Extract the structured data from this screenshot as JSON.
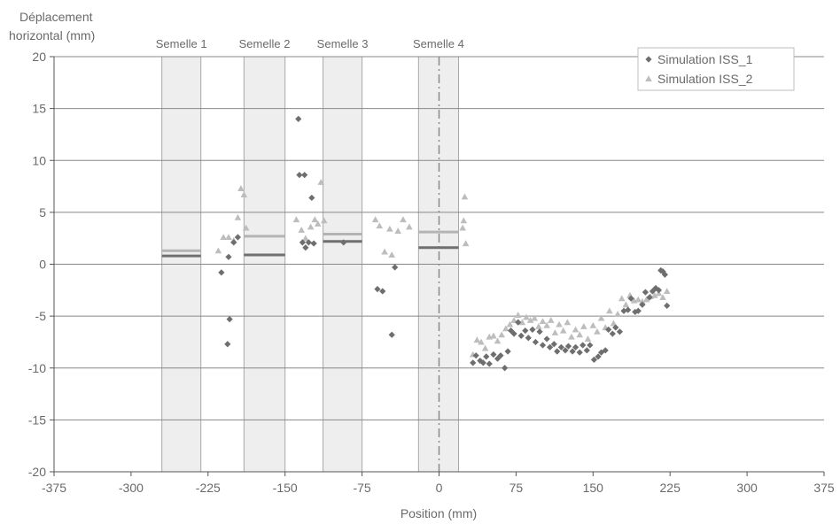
{
  "chart_data": {
    "type": "scatter",
    "ylabel_lines": [
      "Déplacement",
      "horizontal (mm)"
    ],
    "xlabel": "Position (mm)",
    "xlim": [
      -375,
      375
    ],
    "ylim": [
      -20,
      20
    ],
    "x_ticks": [
      -375,
      -300,
      -225,
      -150,
      -75,
      0,
      75,
      150,
      225,
      300,
      375
    ],
    "y_ticks": [
      -20,
      -15,
      -10,
      -5,
      0,
      5,
      10,
      15,
      20
    ],
    "gridlines": "horizontal",
    "legend_position": "top-right",
    "colors": {
      "ISS_1": "#6e6e6e",
      "ISS_2": "#bdbdbd",
      "band": "#eeeeee",
      "grid": "#888888"
    },
    "footings": [
      {
        "label": "Semelle 1",
        "x_range": [
          -270,
          -232
        ],
        "level_iss1": 0.8,
        "level_iss2": 1.3
      },
      {
        "label": "Semelle 2",
        "x_range": [
          -190,
          -150
        ],
        "level_iss1": 0.9,
        "level_iss2": 2.7
      },
      {
        "label": "Semelle 3",
        "x_range": [
          -113,
          -75
        ],
        "level_iss1": 2.2,
        "level_iss2": 2.9
      },
      {
        "label": "Semelle 4",
        "x_range": [
          -20,
          19
        ],
        "level_iss1": 1.6,
        "level_iss2": 3.1
      }
    ],
    "centerline_x": 0,
    "series": [
      {
        "name": "Simulation ISS_1",
        "marker": "diamond",
        "points": [
          [
            -212,
            -0.8
          ],
          [
            -205,
            0.7
          ],
          [
            -204,
            -5.3
          ],
          [
            -206,
            -7.7
          ],
          [
            -200,
            2.1
          ],
          [
            -196,
            2.6
          ],
          [
            -137,
            14.0
          ],
          [
            -136,
            8.6
          ],
          [
            -131,
            8.6
          ],
          [
            -133,
            2.1
          ],
          [
            -130,
            1.6
          ],
          [
            -127,
            2.1
          ],
          [
            -124,
            6.4
          ],
          [
            -122,
            2.0
          ],
          [
            -93,
            2.1
          ],
          [
            -60,
            -2.4
          ],
          [
            -55,
            -2.6
          ],
          [
            -43,
            -0.3
          ],
          [
            -46,
            -6.8
          ],
          [
            33,
            -9.5
          ],
          [
            36,
            -8.8
          ],
          [
            40,
            -9.3
          ],
          [
            43,
            -9.5
          ],
          [
            46,
            -8.9
          ],
          [
            49,
            -9.6
          ],
          [
            53,
            -8.7
          ],
          [
            57,
            -9.1
          ],
          [
            60,
            -8.8
          ],
          [
            64,
            -10.0
          ],
          [
            67,
            -8.4
          ],
          [
            70,
            -6.4
          ],
          [
            73,
            -6.7
          ],
          [
            77,
            -5.6
          ],
          [
            80,
            -6.9
          ],
          [
            84,
            -6.4
          ],
          [
            87,
            -7.1
          ],
          [
            91,
            -6.3
          ],
          [
            94,
            -7.5
          ],
          [
            98,
            -6.5
          ],
          [
            101,
            -7.8
          ],
          [
            105,
            -7.2
          ],
          [
            108,
            -8.0
          ],
          [
            112,
            -7.7
          ],
          [
            115,
            -8.4
          ],
          [
            119,
            -8.0
          ],
          [
            123,
            -8.3
          ],
          [
            126,
            -7.9
          ],
          [
            130,
            -8.4
          ],
          [
            133,
            -8.0
          ],
          [
            137,
            -8.5
          ],
          [
            140,
            -7.8
          ],
          [
            144,
            -8.3
          ],
          [
            147,
            -7.8
          ],
          [
            151,
            -9.2
          ],
          [
            155,
            -8.9
          ],
          [
            158,
            -8.5
          ],
          [
            162,
            -8.3
          ],
          [
            165,
            -6.3
          ],
          [
            169,
            -6.7
          ],
          [
            172,
            -6.1
          ],
          [
            176,
            -6.5
          ],
          [
            180,
            -4.5
          ],
          [
            184,
            -4.4
          ],
          [
            187,
            -3.3
          ],
          [
            191,
            -4.6
          ],
          [
            194,
            -4.5
          ],
          [
            198,
            -3.9
          ],
          [
            201,
            -2.7
          ],
          [
            205,
            -3.2
          ],
          [
            208,
            -2.6
          ],
          [
            211,
            -2.3
          ],
          [
            214,
            -2.5
          ],
          [
            216,
            -0.6
          ],
          [
            218,
            -0.7
          ],
          [
            220,
            -1.0
          ],
          [
            222,
            -4.0
          ]
        ]
      },
      {
        "name": "Simulation ISS_2",
        "marker": "triangle",
        "points": [
          [
            -215,
            1.3
          ],
          [
            -210,
            2.6
          ],
          [
            -205,
            2.6
          ],
          [
            -200,
            2.3
          ],
          [
            -196,
            4.5
          ],
          [
            -193,
            7.3
          ],
          [
            -190,
            6.7
          ],
          [
            -188,
            3.5
          ],
          [
            -139,
            4.3
          ],
          [
            -134,
            3.3
          ],
          [
            -130,
            2.5
          ],
          [
            -125,
            3.6
          ],
          [
            -121,
            4.3
          ],
          [
            -118,
            3.9
          ],
          [
            -115,
            7.9
          ],
          [
            -112,
            4.2
          ],
          [
            -62,
            4.3
          ],
          [
            -58,
            3.7
          ],
          [
            -53,
            1.2
          ],
          [
            -48,
            3.4
          ],
          [
            -46,
            0.9
          ],
          [
            -40,
            3.2
          ],
          [
            -35,
            4.3
          ],
          [
            -29,
            3.6
          ],
          [
            23,
            3.5
          ],
          [
            24,
            4.2
          ],
          [
            25,
            6.5
          ],
          [
            26,
            2.0
          ],
          [
            33,
            -8.7
          ],
          [
            37,
            -7.3
          ],
          [
            41,
            -7.5
          ],
          [
            45,
            -8.1
          ],
          [
            49,
            -7.0
          ],
          [
            53,
            -6.9
          ],
          [
            57,
            -7.4
          ],
          [
            61,
            -6.8
          ],
          [
            65,
            -6.2
          ],
          [
            69,
            -5.8
          ],
          [
            73,
            -5.4
          ],
          [
            77,
            -4.9
          ],
          [
            81,
            -5.6
          ],
          [
            85,
            -5.1
          ],
          [
            89,
            -5.4
          ],
          [
            93,
            -5.2
          ],
          [
            97,
            -6.0
          ],
          [
            101,
            -5.5
          ],
          [
            105,
            -5.9
          ],
          [
            109,
            -5.4
          ],
          [
            113,
            -6.6
          ],
          [
            117,
            -5.8
          ],
          [
            121,
            -6.4
          ],
          [
            125,
            -5.6
          ],
          [
            129,
            -7.0
          ],
          [
            133,
            -6.3
          ],
          [
            137,
            -6.8
          ],
          [
            141,
            -6.0
          ],
          [
            145,
            -7.2
          ],
          [
            150,
            -5.9
          ],
          [
            154,
            -6.5
          ],
          [
            158,
            -5.2
          ],
          [
            162,
            -6.1
          ],
          [
            166,
            -4.5
          ],
          [
            170,
            -5.7
          ],
          [
            174,
            -4.8
          ],
          [
            178,
            -3.3
          ],
          [
            182,
            -3.9
          ],
          [
            186,
            -3.0
          ],
          [
            190,
            -3.5
          ],
          [
            194,
            -3.4
          ],
          [
            198,
            -3.6
          ],
          [
            202,
            -3.4
          ],
          [
            206,
            -3.1
          ],
          [
            210,
            -3.0
          ],
          [
            214,
            -2.8
          ],
          [
            218,
            -3.2
          ],
          [
            222,
            -2.6
          ]
        ]
      }
    ]
  }
}
